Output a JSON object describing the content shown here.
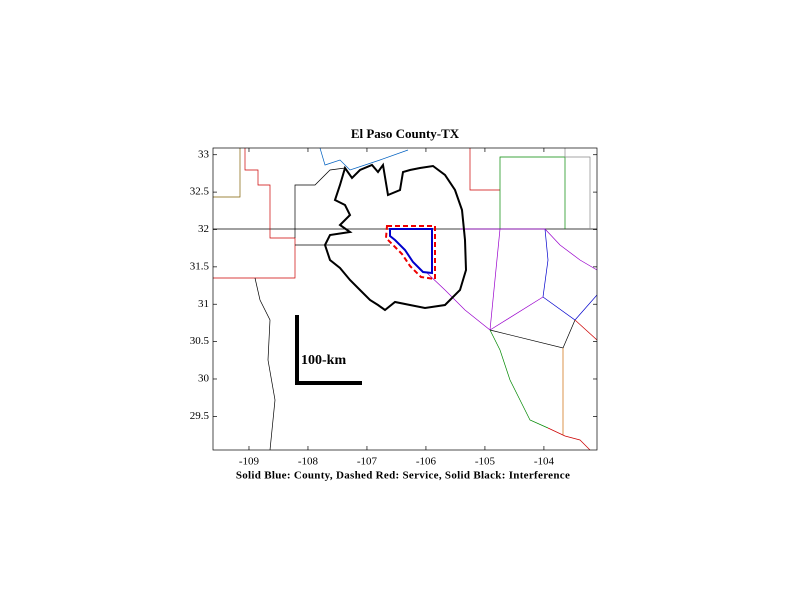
{
  "chart_data": {
    "type": "map",
    "title": "El Paso County-TX",
    "xlabel": "Solid Blue: County, Dashed Red: Service, Solid Black: Interference",
    "scale_label": "100-km",
    "xlim": [
      -109.61,
      -103.1
    ],
    "xticks": [
      -109,
      -108,
      -107,
      -106,
      -105,
      -104
    ],
    "ylim": [
      29.05,
      33.09
    ],
    "yticks": [
      29.5,
      30,
      30.5,
      31,
      31.5,
      32,
      32.5,
      33
    ]
  }
}
